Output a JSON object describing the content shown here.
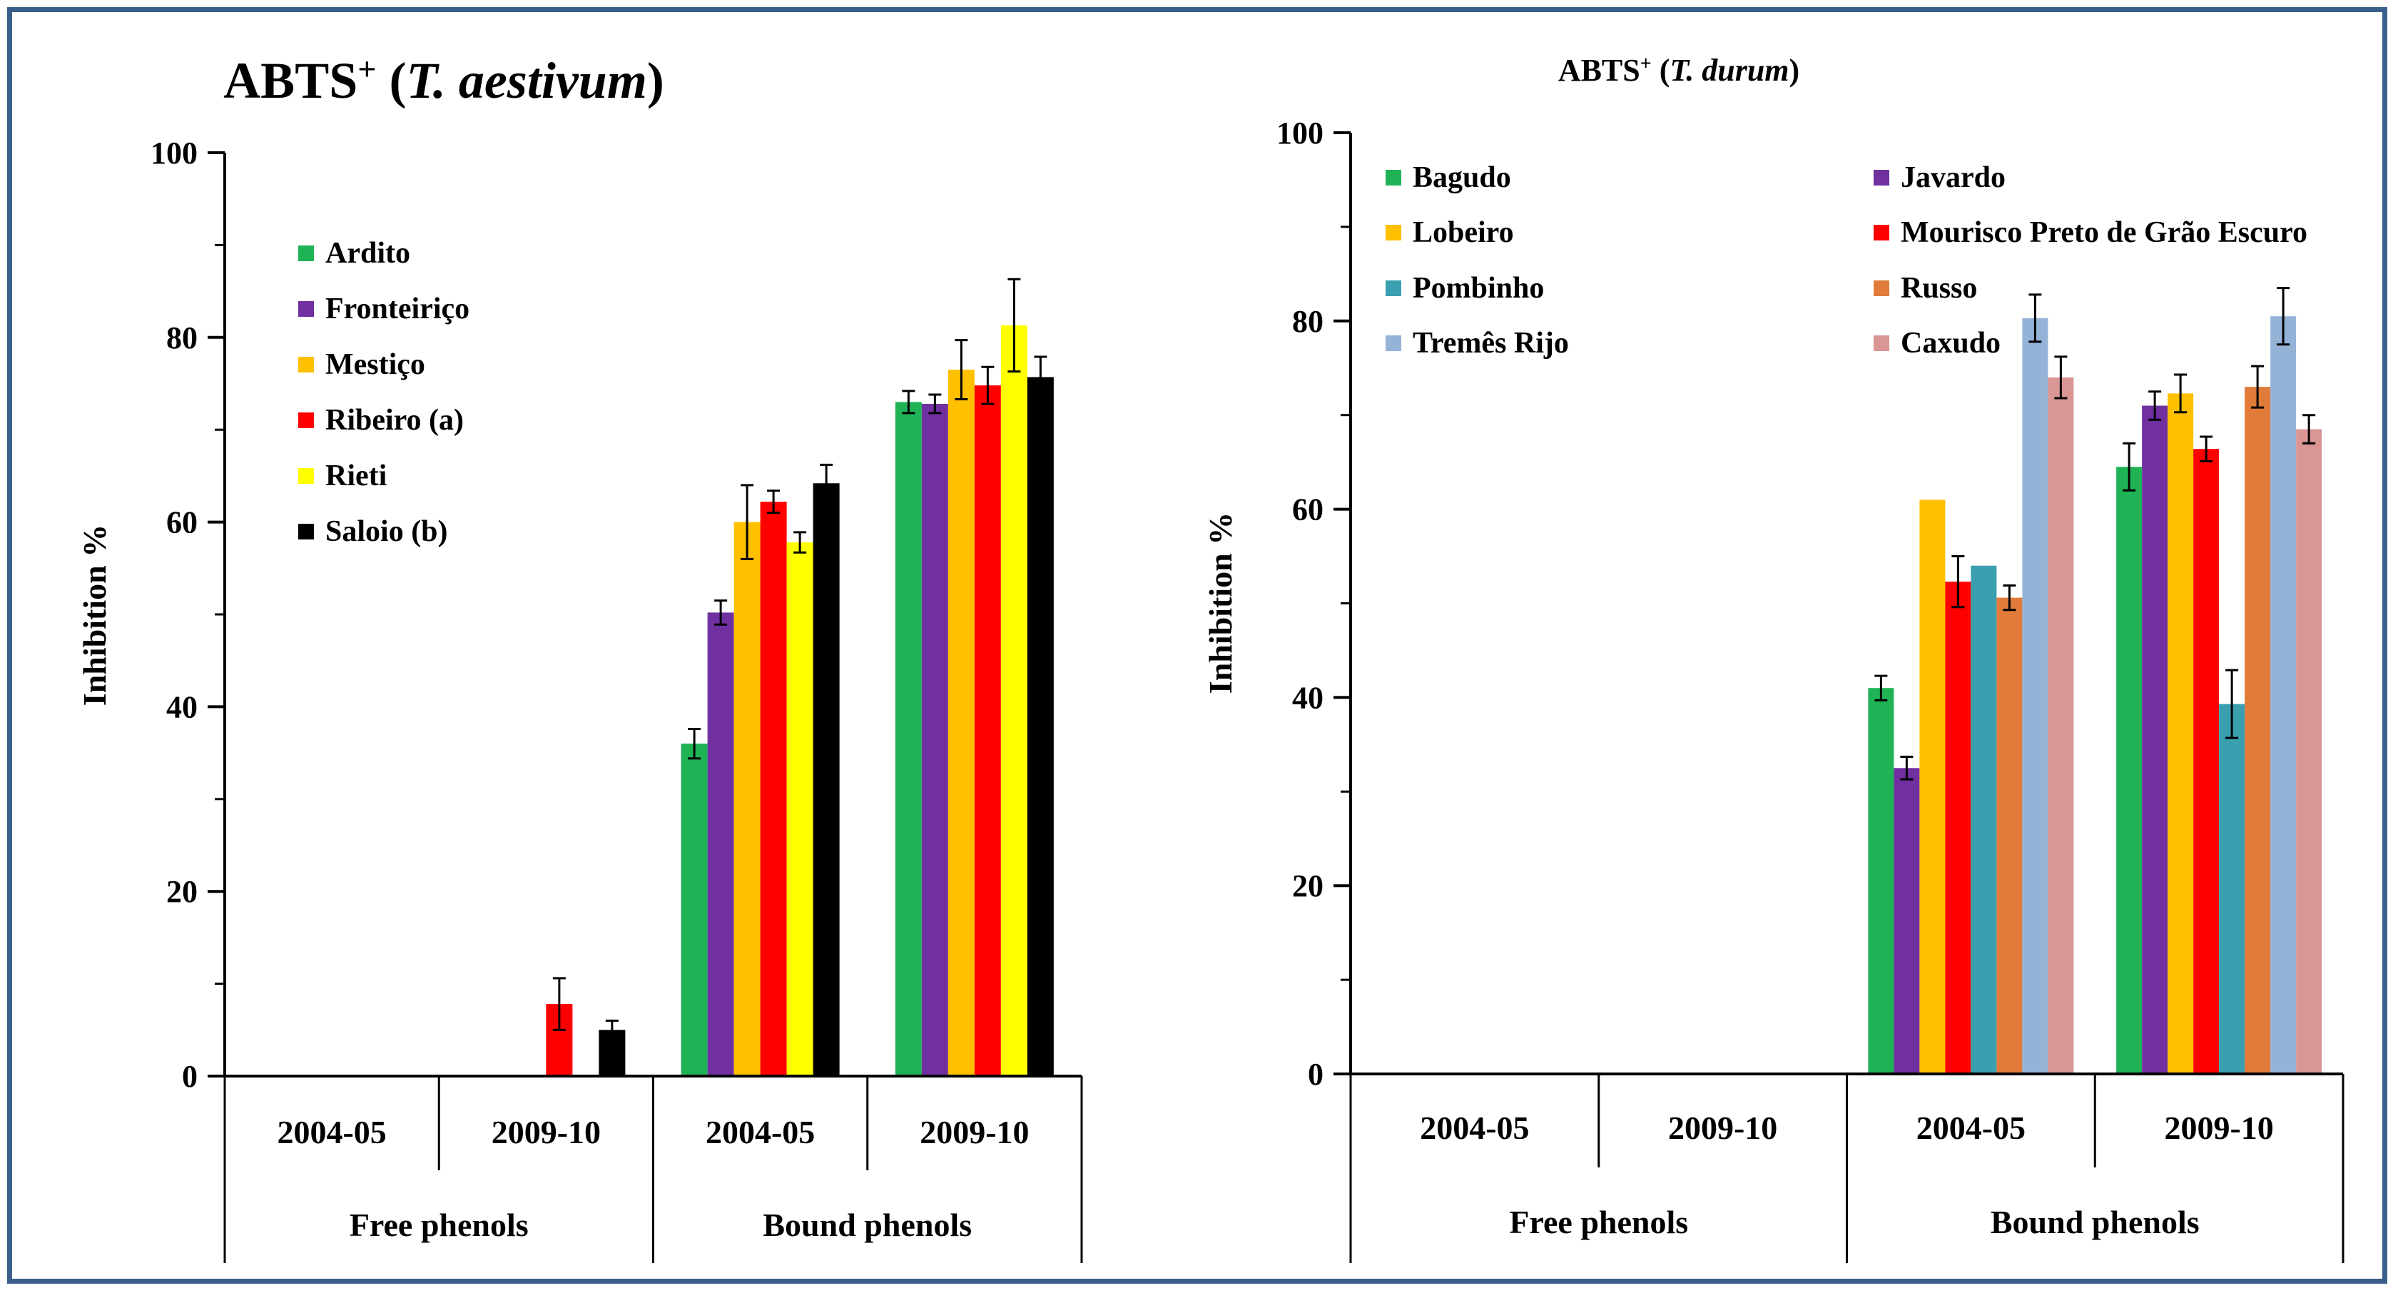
{
  "chart_data": [
    {
      "type": "bar",
      "title": {
        "prefix": "ABTS",
        "sup": "+",
        "open": " (",
        "italic": "T. aestivum",
        "close": ")"
      },
      "ylabel": "Inhibition %",
      "ylim": [
        0,
        100
      ],
      "yticks": [
        "0",
        "20",
        "40",
        "60",
        "80",
        "100"
      ],
      "categories": [
        "2004-05",
        "2009-10",
        "2004-05",
        "2009-10"
      ],
      "groups": [
        "Free phenols",
        "Bound phenols"
      ],
      "legend_position": "top-left",
      "series": [
        {
          "name": "Ardito",
          "color": "#1fb356",
          "values": [
            null,
            null,
            36,
            73
          ],
          "errors": [
            0,
            0,
            1.6,
            1.2
          ]
        },
        {
          "name": "Fronteiriço",
          "color": "#7030a0",
          "values": [
            null,
            null,
            50.2,
            72.8
          ],
          "errors": [
            0,
            0,
            1.3,
            1.0
          ]
        },
        {
          "name": "Mestiço",
          "color": "#ffc000",
          "values": [
            null,
            null,
            60,
            76.5
          ],
          "errors": [
            0,
            0,
            4.0,
            3.2
          ]
        },
        {
          "name": "Ribeiro (a)",
          "color": "#ff0000",
          "values": [
            null,
            7.8,
            62.2,
            74.8
          ],
          "errors": [
            0,
            2.8,
            1.2,
            2.0
          ]
        },
        {
          "name": "Rieti",
          "color": "#ffff00",
          "values": [
            null,
            null,
            57.8,
            81.3
          ],
          "errors": [
            0,
            0,
            1.1,
            5.0
          ]
        },
        {
          "name": "Saloio (b)",
          "color": "#000000",
          "values": [
            null,
            5,
            64.2,
            75.7
          ],
          "errors": [
            0,
            1.0,
            2.0,
            2.2
          ]
        }
      ]
    },
    {
      "type": "bar",
      "title": {
        "prefix": "ABTS",
        "sup": "+",
        "open": " (",
        "italic": "T. durum",
        "close": ")"
      },
      "ylabel": "Inhibition %",
      "ylim": [
        0,
        100
      ],
      "yticks": [
        "0",
        "20",
        "40",
        "60",
        "80",
        "100"
      ],
      "categories": [
        "2004-05",
        "2009-10",
        "2004-05",
        "2009-10"
      ],
      "groups": [
        "Free phenols",
        "Bound phenols"
      ],
      "legend_position": "top (two columns)",
      "series": [
        {
          "name": "Bagudo",
          "color": "#1fb356",
          "values": [
            null,
            null,
            41,
            64.5
          ],
          "errors": [
            0,
            0,
            1.3,
            2.5
          ]
        },
        {
          "name": "Javardo",
          "color": "#7030a0",
          "values": [
            null,
            null,
            32.5,
            71
          ],
          "errors": [
            0,
            0,
            1.2,
            1.5
          ]
        },
        {
          "name": "Lobeiro",
          "color": "#ffc000",
          "values": [
            null,
            null,
            61,
            72.3
          ],
          "errors": [
            0,
            0,
            0,
            2.0
          ]
        },
        {
          "name": "Mourisco Preto de Grão Escuro",
          "color": "#ff0000",
          "values": [
            null,
            null,
            52.3,
            66.4
          ],
          "errors": [
            0,
            0,
            2.7,
            1.3
          ]
        },
        {
          "name": "Pombinho",
          "color": "#3aa0b0",
          "values": [
            null,
            null,
            54,
            39.3
          ],
          "errors": [
            0,
            0,
            0,
            3.6
          ]
        },
        {
          "name": "Russo",
          "color": "#e07b39",
          "values": [
            null,
            null,
            50.6,
            73
          ],
          "errors": [
            0,
            0,
            1.3,
            2.2
          ]
        },
        {
          "name": "Tremês Rijo",
          "color": "#95b3d7",
          "values": [
            null,
            null,
            80.3,
            80.5
          ],
          "errors": [
            0,
            0,
            2.5,
            3.0
          ]
        },
        {
          "name": "Caxudo",
          "color": "#d99694",
          "values": [
            null,
            null,
            74,
            68.5
          ],
          "errors": [
            0,
            0,
            2.2,
            1.5
          ]
        }
      ]
    }
  ]
}
